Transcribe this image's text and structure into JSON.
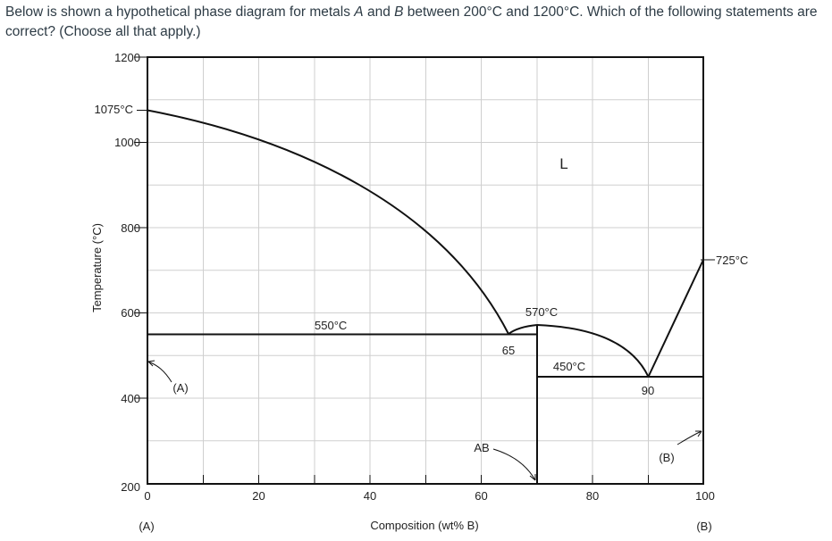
{
  "question": {
    "text_1": "Below is shown a hypothetical phase diagram for metals ",
    "metal_a": "A",
    "text_2": " and ",
    "metal_b": "B",
    "text_3": " between 200°C and 1200°C. Which of the following statements are correct? (Choose all that apply.)"
  },
  "diagram": {
    "y_axis_label": "Temperature (°C)",
    "x_axis_label": "Composition (wt% B)",
    "y_ticks": [
      "1200",
      "1000",
      "800",
      "600",
      "400",
      "200"
    ],
    "x_ticks": [
      "0",
      "20",
      "40",
      "60",
      "80",
      "100"
    ],
    "end_label_a": "(A)",
    "end_label_b": "(B)",
    "melting_point_a": "1075°C",
    "melting_point_b": "725°C",
    "eutectic_1_temp": "550°C",
    "eutectic_1_comp": "65",
    "compound_melting": "570°C",
    "eutectic_2_temp": "450°C",
    "eutectic_2_comp": "90",
    "phase_liquid": "L",
    "phase_compound": "AB",
    "phase_a": "(A)",
    "phase_b": "(B)"
  }
}
